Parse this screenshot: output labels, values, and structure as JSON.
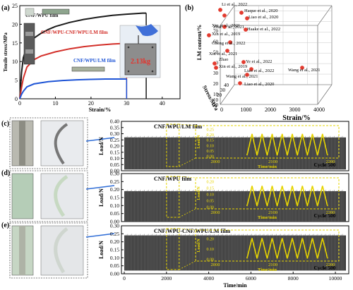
{
  "panel_labels": [
    "(a)",
    "(b)",
    "(c)",
    "(d)",
    "(e)"
  ],
  "colors": {
    "black": "#1a1a1a",
    "red": "#d3302a",
    "blue": "#1f55d6",
    "yellow": "#e6d400",
    "signal": "#3a3a3a",
    "marker": "#e23b2f"
  },
  "chart_data": [
    {
      "type": "line",
      "panel": "(a)",
      "xlabel": "Strain/%",
      "ylabel": "Tensile stress/MPa",
      "xlim": [
        0,
        45
      ],
      "ylim": [
        0,
        25
      ],
      "xticks": [
        "0",
        "10",
        "20",
        "30",
        "40"
      ],
      "yticks": [
        "0",
        "5",
        "10",
        "15",
        "20",
        "25"
      ],
      "series": [
        {
          "name": "CNF/WPU film",
          "color": "#1a1a1a",
          "x": [
            0,
            0.5,
            1,
            2,
            4,
            6,
            8,
            10,
            14,
            18,
            22,
            26,
            30,
            33,
            34.5,
            35.5
          ],
          "y": [
            0,
            7,
            11,
            14,
            16.3,
            17.6,
            18.6,
            19.4,
            20.5,
            21.3,
            21.9,
            22.4,
            22.7,
            22.9,
            23,
            23
          ]
        },
        {
          "name": "CNF/WPU-CNF/WPU/LM film",
          "color": "#d3302a",
          "x": [
            0,
            0.5,
            1,
            2,
            4,
            6,
            10,
            14,
            18,
            22,
            26,
            28,
            29,
            30
          ],
          "y": [
            0,
            3,
            5.5,
            8.5,
            10.5,
            11.5,
            12.6,
            13.4,
            14,
            14.4,
            14.7,
            14.8,
            14.8,
            14.8
          ]
        },
        {
          "name": "CNF/WPU/LM film",
          "color": "#1f55d6",
          "x": [
            0,
            0.5,
            1,
            2,
            4,
            8,
            12,
            16,
            20,
            24,
            28,
            30
          ],
          "y": [
            0,
            1.2,
            2,
            3.2,
            4,
            4.6,
            4.9,
            5.1,
            5.2,
            5.3,
            5.3,
            5.3
          ]
        }
      ],
      "annotations": [
        "2.13kg"
      ]
    },
    {
      "type": "scatter",
      "panel": "(b)",
      "xlabel": "Strain/%",
      "ylabel": "Stress/MPa",
      "zlabel": "LM content/%",
      "xticks": [
        "0",
        "1000",
        "2000",
        "3000",
        "4000"
      ],
      "yticks": [
        "0",
        "10",
        "20",
        "30",
        "40"
      ],
      "zticks": [
        "0",
        "10",
        "20",
        "30",
        "40",
        "50",
        "60",
        "70"
      ],
      "points": [
        {
          "label": "Li et al., 2022"
        },
        {
          "label": "Zhao et al., 2021"
        },
        {
          "label": "Haque et al., 2020"
        },
        {
          "label": "Liao et al., 2020"
        },
        {
          "label": "Xin et al., 2021"
        },
        {
          "label": "Haake et al., 2022"
        },
        {
          "label": "Xin et al., 2019"
        },
        {
          "label": "Cheng et al., 2022"
        },
        {
          "label": "Xin et al., 2021"
        },
        {
          "label": "Zhao"
        },
        {
          "label": "Ye et al., 2022"
        },
        {
          "label": "Xin et al., 2019"
        },
        {
          "label": "Liao et al., 2022"
        },
        {
          "label": "Wang et al., 2021"
        },
        {
          "label": "Wang et al., 2021"
        },
        {
          "label": "Liao et al., 2020"
        }
      ]
    },
    {
      "type": "line",
      "panel": "(c)",
      "title": "CNF/WPU/LM film",
      "ylabel": "Load/N",
      "yticks": [
        "0.00",
        "0.05",
        "0.10",
        "0.15",
        "0.20",
        "0.25",
        "0.30",
        "0.35",
        "0.40"
      ],
      "ylim": [
        0,
        0.4
      ],
      "band": [
        0.01,
        0.27
      ],
      "cycle_label": "Cycle 500",
      "inset": {
        "xlabel": "Time/min",
        "ylabel": "Load/N",
        "xticks": [
          "2000",
          "2100",
          "2200"
        ],
        "yticks": [
          "0.00",
          "0.05",
          "0.10",
          "0.15",
          "0.20",
          "0.25"
        ],
        "xlim": [
          2000,
          2200
        ],
        "ylim": [
          0,
          0.25
        ]
      }
    },
    {
      "type": "line",
      "panel": "(d)",
      "title": "CNF/WPU film",
      "ylabel": "Load/N",
      "yticks": [
        "0.00",
        "0.05",
        "0.10",
        "0.15",
        "0.20",
        "0.25",
        "0.30"
      ],
      "ylim": [
        0,
        0.3
      ],
      "band": [
        0.0,
        0.19
      ],
      "cycle_label": "Cycle 500",
      "inset": {
        "xlabel": "Time/min",
        "ylabel": "Load/N",
        "xticks": [
          "2000",
          "2100",
          "2200"
        ],
        "yticks": [
          "0.00",
          "0.05",
          "0.10",
          "0.15",
          "0.20"
        ],
        "xlim": [
          2000,
          2200
        ],
        "ylim": [
          0,
          0.2
        ]
      }
    },
    {
      "type": "line",
      "panel": "(e)",
      "title": "CNF/WPU-CNF/WPU/LM film",
      "xlabel": "Time/min",
      "ylabel": "Load/N",
      "xticks": [
        "0",
        "2000",
        "4000",
        "6000",
        "8000",
        "10000"
      ],
      "yticks": [
        "0.00",
        "0.05",
        "0.10",
        "0.15",
        "0.20",
        "0.25",
        "0.30"
      ],
      "xlim": [
        0,
        10500
      ],
      "ylim": [
        0,
        0.3
      ],
      "band": [
        0.02,
        0.24
      ],
      "cycle_label": "Cycle 500",
      "inset": {
        "xlabel": "Time/min",
        "ylabel": "Load/N",
        "xticks": [
          "2000",
          "2100",
          "2200"
        ],
        "yticks": [
          "0.00",
          "0.10",
          "0.20"
        ],
        "xlim": [
          2000,
          2200
        ],
        "ylim": [
          0,
          0.25
        ]
      }
    }
  ]
}
